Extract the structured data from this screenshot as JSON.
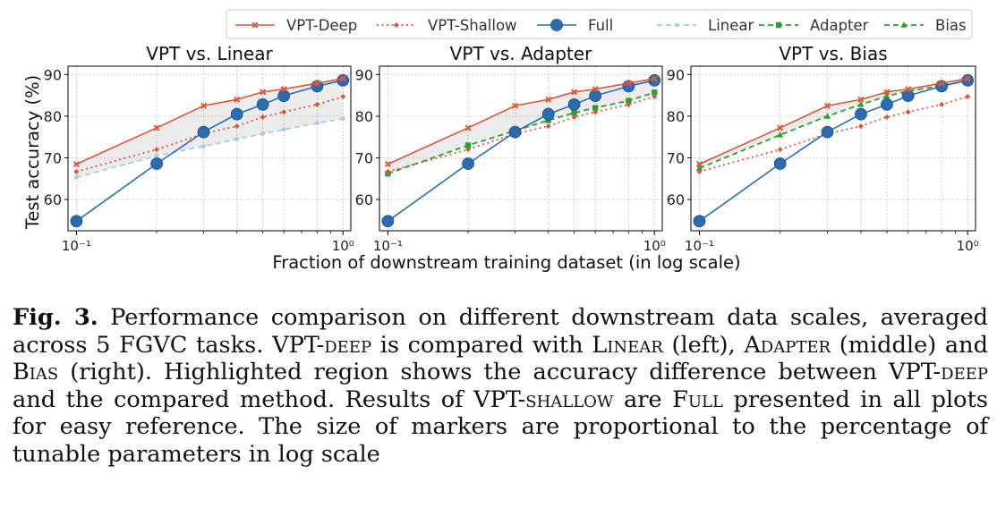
{
  "chart_data": {
    "type": "line",
    "x_scale": "log",
    "x": [
      0.1,
      0.2,
      0.3,
      0.4,
      0.5,
      0.6,
      0.8,
      1.0
    ],
    "xlim": [
      0.093,
      1.07
    ],
    "ylim": [
      52.5,
      92
    ],
    "y_ticks": [
      60,
      70,
      80,
      90
    ],
    "x_tick_labels": [
      "10⁻¹",
      "10⁰"
    ],
    "xlabel": "Fraction of downstream training dataset (in log scale)",
    "ylabel": "Test accuracy (%)",
    "grid": true,
    "legend_position": "top-right",
    "series": {
      "vpt_deep": {
        "name": "VPT-Deep",
        "color": "#d9573d",
        "marker": "x-cross",
        "line": "solid",
        "values": [
          68.5,
          77.2,
          82.5,
          84.0,
          85.8,
          86.5,
          87.9,
          89.0
        ]
      },
      "vpt_shallow": {
        "name": "VPT-Shallow",
        "color": "#d9573d",
        "marker": "diamond",
        "line": "dotted",
        "values": [
          66.7,
          72.0,
          75.8,
          77.6,
          79.8,
          81.0,
          82.8,
          84.7
        ]
      },
      "full": {
        "name": "Full",
        "color": "#2b6cb0",
        "marker": "circle",
        "line": "solid",
        "values": [
          54.8,
          68.6,
          76.2,
          80.5,
          82.8,
          84.9,
          87.2,
          88.6
        ]
      },
      "linear": {
        "name": "Linear",
        "color": "#a8cce0",
        "marker": "dot",
        "line": "dashed",
        "values": [
          65.3,
          70.5,
          72.8,
          74.5,
          75.8,
          76.8,
          78.3,
          79.4
        ]
      },
      "adapter": {
        "name": "Adapter",
        "color": "#2ca02c",
        "marker": "square",
        "line": "dashed",
        "values": [
          66.2,
          73.0,
          76.5,
          79.0,
          80.8,
          82.0,
          83.7,
          85.7
        ]
      },
      "bias": {
        "name": "Bias",
        "color": "#2ca02c",
        "marker": "triangle",
        "line": "dashed",
        "values": [
          67.5,
          75.5,
          80.0,
          82.8,
          84.8,
          86.0,
          87.3,
          88.5
        ]
      }
    },
    "legend": [
      "vpt_deep",
      "vpt_shallow",
      "full",
      "linear",
      "adapter",
      "bias"
    ],
    "panels": [
      {
        "title": "VPT vs. Linear",
        "compared": "linear",
        "series": [
          "vpt_deep",
          "vpt_shallow",
          "full",
          "linear"
        ]
      },
      {
        "title": "VPT vs. Adapter",
        "compared": "adapter",
        "series": [
          "vpt_deep",
          "vpt_shallow",
          "full",
          "adapter"
        ]
      },
      {
        "title": "VPT vs. Bias",
        "compared": "bias",
        "series": [
          "vpt_deep",
          "vpt_shallow",
          "full",
          "bias"
        ]
      }
    ]
  },
  "caption": {
    "label": "Fig. 3.",
    "segments": [
      {
        "t": " Performance comparison on different downstream data scales, averaged across 5 FGVC tasks. VPT-",
        "sc": false
      },
      {
        "t": "deep",
        "sc": true
      },
      {
        "t": " is compared with ",
        "sc": false
      },
      {
        "t": "Linear",
        "sc": true
      },
      {
        "t": " (left), ",
        "sc": false
      },
      {
        "t": "Adapter",
        "sc": true
      },
      {
        "t": " (middle) and ",
        "sc": false
      },
      {
        "t": "Bias",
        "sc": true
      },
      {
        "t": " (right). Highlighted region shows the accuracy difference between VPT-",
        "sc": false
      },
      {
        "t": "deep",
        "sc": true
      },
      {
        "t": " and the compared method. Results of VPT-",
        "sc": false
      },
      {
        "t": "shallow",
        "sc": true
      },
      {
        "t": " are ",
        "sc": false
      },
      {
        "t": "Full",
        "sc": true
      },
      {
        "t": " presented in all plots for easy reference. The size of markers are proportional to the percentage of tunable parameters in log scale",
        "sc": false
      }
    ]
  }
}
